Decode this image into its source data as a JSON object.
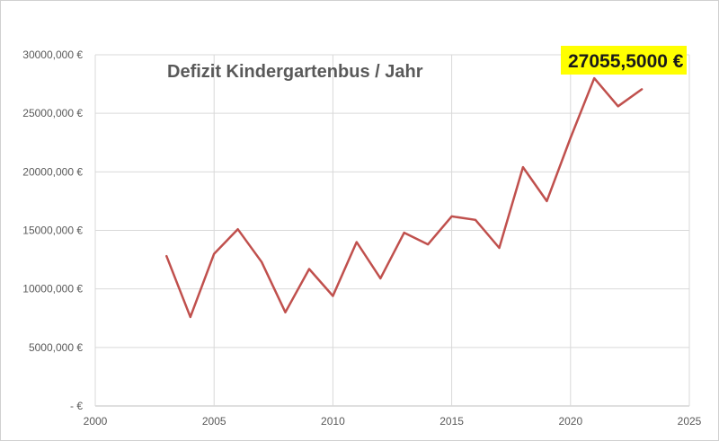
{
  "chart_data": {
    "type": "line",
    "title": "Defizit Kindergartenbus / Jahr",
    "xlabel": "",
    "ylabel": "",
    "xlim": [
      2000,
      2025
    ],
    "ylim": [
      0,
      30000
    ],
    "x_ticks": [
      2000,
      2005,
      2010,
      2015,
      2020,
      2025
    ],
    "y_ticks": [
      0,
      5000,
      10000,
      15000,
      20000,
      25000,
      30000
    ],
    "y_tick_labels": [
      "-  €",
      "5000,000 €",
      "10000,000 €",
      "15000,000 €",
      "20000,000 €",
      "25000,000 €",
      "30000,000 €"
    ],
    "grid": true,
    "series": [
      {
        "color": "#c0504d",
        "x": [
          2003,
          2004,
          2005,
          2006,
          2007,
          2008,
          2009,
          2010,
          2011,
          2012,
          2013,
          2014,
          2015,
          2016,
          2017,
          2018,
          2019,
          2020,
          2021,
          2022,
          2023
        ],
        "y": [
          12800,
          7600,
          13000,
          15100,
          12300,
          8000,
          11700,
          9400,
          14000,
          10900,
          14800,
          13800,
          16200,
          15900,
          13500,
          20400,
          17500,
          22900,
          28000,
          25600,
          27055.5
        ]
      }
    ],
    "annotations": [
      {
        "text": "27055,5000 €",
        "background": "#ffff00",
        "for_x": 2023
      }
    ]
  }
}
